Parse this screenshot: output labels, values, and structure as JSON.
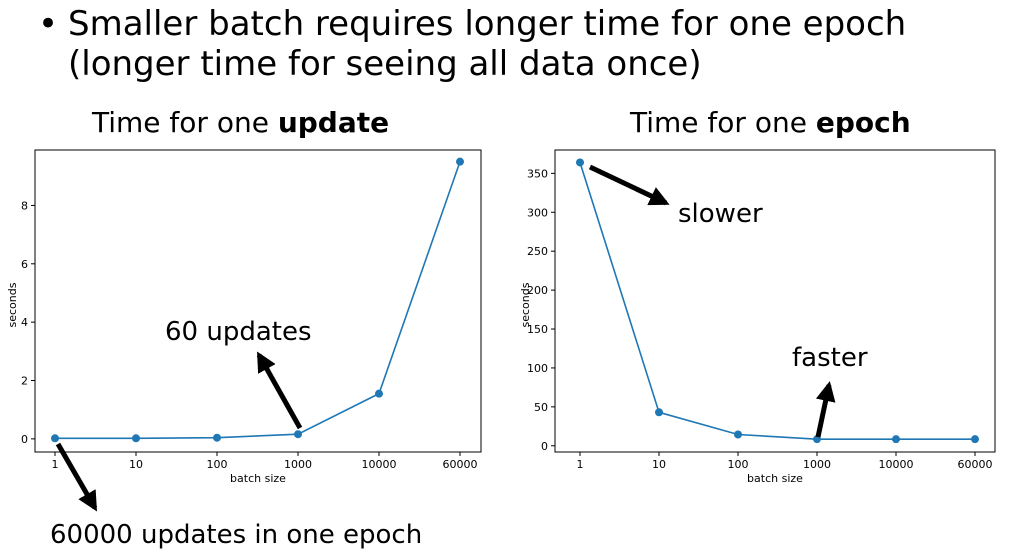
{
  "slide": {
    "bullet_symbol": "•",
    "bullet_line1": "Smaller batch requires longer time for one epoch",
    "bullet_line2": "(longer time for seeing all data once)"
  },
  "chart_data": [
    {
      "type": "line",
      "title_prefix": "Time for one ",
      "title_bold": "update",
      "xlabel": "batch size",
      "ylabel": "seconds",
      "x_scale": "categorical",
      "categories": [
        "1",
        "10",
        "100",
        "1000",
        "10000",
        "60000"
      ],
      "series": [
        {
          "values": [
            0.02,
            0.02,
            0.04,
            0.16,
            1.55,
            9.5
          ],
          "color": "#1f77b4"
        }
      ],
      "ylim": [
        -0.45,
        9.9
      ],
      "yticks": [
        0,
        2,
        4,
        6,
        8
      ],
      "annotations": [
        {
          "text": "60 updates",
          "points_to": "1000"
        },
        {
          "text": "60000 updates in one epoch",
          "points_to": "1"
        }
      ]
    },
    {
      "type": "line",
      "title_prefix": "Time for one ",
      "title_bold": "epoch",
      "xlabel": "batch size",
      "ylabel": "seconds",
      "x_scale": "categorical",
      "categories": [
        "1",
        "10",
        "100",
        "1000",
        "10000",
        "60000"
      ],
      "series": [
        {
          "values": [
            364,
            43,
            14.5,
            8.5,
            8.5,
            8.5
          ],
          "color": "#1f77b4"
        }
      ],
      "ylim": [
        -8,
        380
      ],
      "yticks": [
        0,
        50,
        100,
        150,
        200,
        250,
        300,
        350
      ],
      "annotations": [
        {
          "text": "slower",
          "points_to": "1"
        },
        {
          "text": "faster",
          "points_to": "1000"
        }
      ]
    }
  ]
}
